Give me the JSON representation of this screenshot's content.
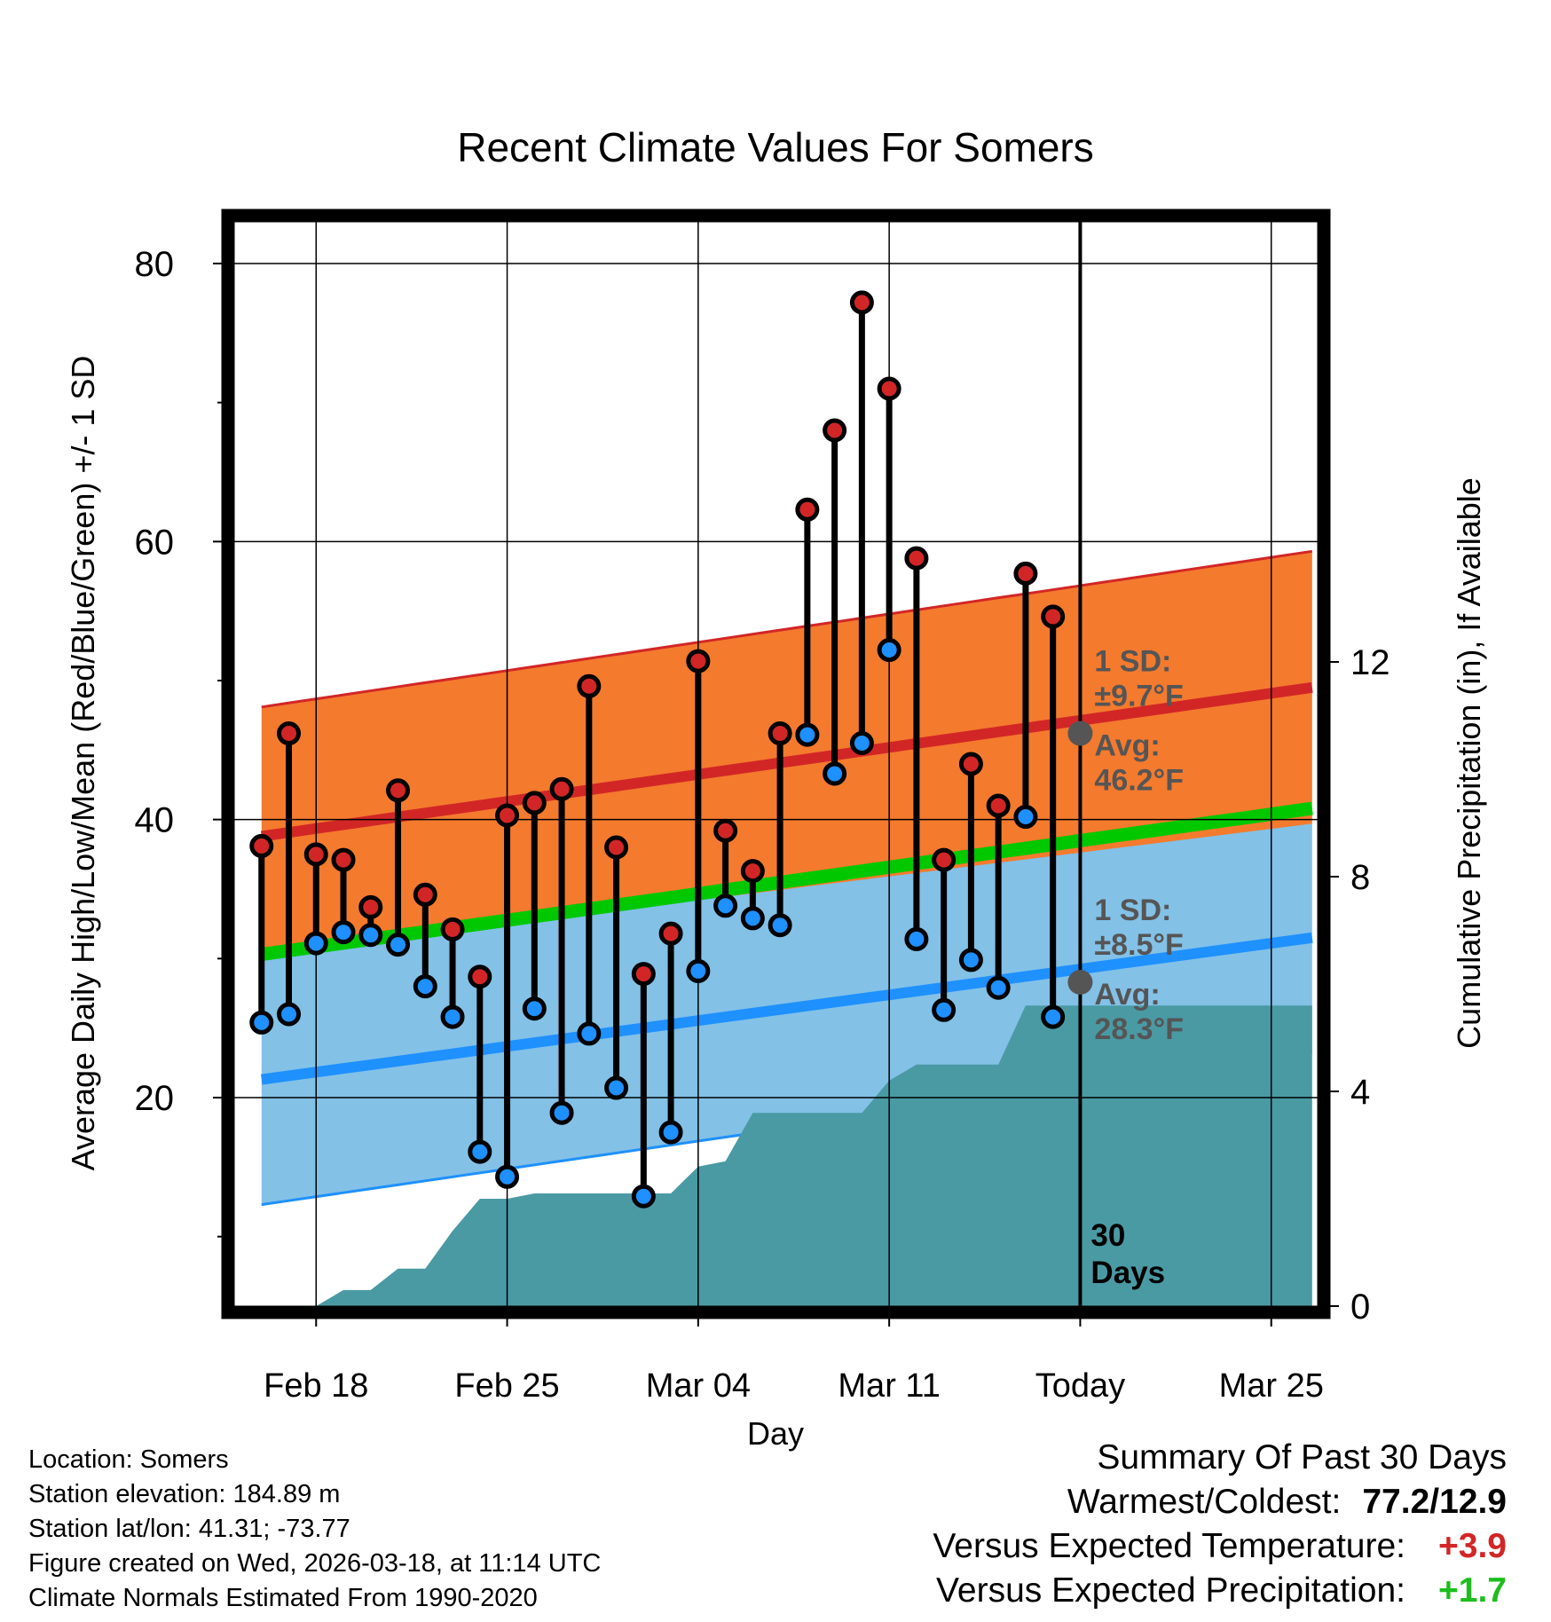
{
  "colors": {
    "high": "#d22626",
    "low": "#1e90ff",
    "high_band": "#f47a2e",
    "low_band": "#83c1e7",
    "mean": "#00c800",
    "precip": "#4a9aa4",
    "avg_dot": "#555555",
    "positive_temp": "#d22626",
    "positive_precip": "#1dbd1d"
  },
  "chart_data": {
    "type": "line",
    "title": "Recent Climate Values For Somers",
    "xlabel": "Day",
    "ylabel": "Average Daily High/Low/Mean (Red/Blue/Green) +/- 1 SD",
    "y2label": "Cumulative Precipitation (in), If Available",
    "x_ticks": [
      {
        "day": 2,
        "label": "Feb 18"
      },
      {
        "day": 9,
        "label": "Feb 25"
      },
      {
        "day": 16,
        "label": "Mar 04"
      },
      {
        "day": 23,
        "label": "Mar 11"
      },
      {
        "day": 30,
        "label": "Today"
      },
      {
        "day": 37,
        "label": "Mar 25"
      }
    ],
    "xlim": [
      -1,
      38.7
    ],
    "ylim": [
      5,
      83
    ],
    "y_ticks": [
      20,
      40,
      60,
      80
    ],
    "y_minor_ticks": [
      10,
      30,
      50,
      70
    ],
    "y2lim": [
      0,
      20.2
    ],
    "y2_ticks": [
      0,
      4,
      8,
      12
    ],
    "today_day": 30,
    "today_label_line1": "30",
    "today_label_line2": "Days",
    "normals": {
      "x_range": [
        0,
        38.5
      ],
      "high_avg": [
        38.8,
        49.5
      ],
      "high_sd": [
        9.3,
        9.8
      ],
      "low_avg": [
        21.3,
        31.5
      ],
      "low_sd": [
        9.0,
        8.2
      ],
      "mean_avg": [
        30.3,
        40.8
      ]
    },
    "daily": {
      "days": [
        0,
        1,
        2,
        3,
        4,
        5,
        6,
        7,
        8,
        9,
        10,
        11,
        12,
        13,
        14,
        15,
        16,
        17,
        18,
        19,
        20,
        21,
        22,
        23,
        24,
        25,
        26,
        27,
        28,
        29
      ],
      "highs": [
        38.1,
        46.2,
        37.5,
        37.1,
        33.7,
        42.1,
        34.6,
        32.1,
        28.7,
        40.3,
        41.2,
        42.2,
        49.6,
        38.0,
        28.9,
        31.8,
        51.4,
        39.2,
        36.3,
        46.2,
        62.3,
        68.0,
        77.2,
        71.0,
        58.8,
        37.1,
        44.0,
        41.0,
        57.7,
        54.6
      ],
      "lows": [
        25.4,
        26.0,
        31.1,
        31.9,
        31.7,
        31.0,
        28.0,
        25.8,
        16.1,
        14.3,
        26.4,
        18.9,
        24.6,
        20.7,
        12.9,
        17.5,
        29.1,
        33.8,
        32.9,
        32.4,
        46.1,
        43.3,
        45.5,
        52.2,
        31.4,
        26.3,
        29.9,
        27.9,
        40.2,
        25.8
      ]
    },
    "precip": {
      "days": [
        0,
        2,
        3,
        4,
        5,
        6,
        7,
        8,
        9,
        10,
        11,
        12,
        13,
        14,
        15,
        16,
        17,
        18,
        19,
        20,
        21,
        22,
        23,
        24,
        25,
        26,
        27,
        28,
        29,
        30,
        31,
        32,
        33,
        34,
        35,
        36,
        37,
        38.5
      ],
      "values": [
        0,
        0,
        0.3,
        0.3,
        0.7,
        0.7,
        1.4,
        2.0,
        2.0,
        2.1,
        2.1,
        2.1,
        2.1,
        2.1,
        2.1,
        2.6,
        2.7,
        3.6,
        3.6,
        3.6,
        3.6,
        3.6,
        4.2,
        4.5,
        4.5,
        4.5,
        4.5,
        5.6,
        5.6,
        5.6,
        5.6,
        5.6,
        5.6,
        5.6,
        5.6,
        5.6,
        5.6,
        5.6
      ]
    },
    "annotations": {
      "high_sd_label": "1 SD:",
      "high_sd_value": "±9.7°F",
      "high_avg_label": "Avg:",
      "high_avg_value": "46.2°F",
      "high_avg": 46.2,
      "low_sd_label": "1 SD:",
      "low_sd_value": "±8.5°F",
      "low_avg_label": "Avg:",
      "low_avg_value": "28.3°F",
      "low_avg": 28.3
    }
  },
  "footer": {
    "location": "Location: Somers",
    "elevation": "Station elevation: 184.89 m",
    "latlon": "Station lat/lon: 41.31; -73.77",
    "created": "Figure created on Wed, 2026-03-18, at 11:14 UTC",
    "normals": "Climate Normals Estimated From 1990-2020"
  },
  "summary": {
    "title": "Summary Of Past 30 Days",
    "warmest_label": "Warmest/Coldest:",
    "warmest_value": "77.2/12.9",
    "temp_label": "Versus Expected Temperature:",
    "temp_value": "+3.9",
    "precip_label": "Versus Expected Precipitation:",
    "precip_value": "+1.7"
  }
}
